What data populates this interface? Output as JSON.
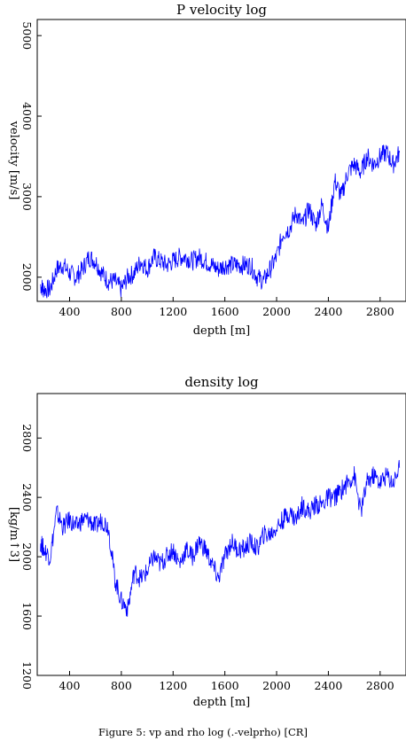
{
  "figure": {
    "caption": "Figure 5: vp and rho log  (.-velprho) [CR]"
  },
  "chart_data": [
    {
      "type": "line",
      "title": "P velocity log",
      "xlabel": "depth [m]",
      "ylabel": "velocity [m/s]",
      "xlim": [
        150,
        3000
      ],
      "ylim": [
        1700,
        5200
      ],
      "xticks": [
        400,
        800,
        1200,
        1600,
        2000,
        2400,
        2800
      ],
      "xtick_labels": [
        "400",
        "800",
        "1200",
        "1600",
        "2000",
        "2400",
        "2800"
      ],
      "yticks": [
        2000,
        3000,
        4000,
        5000
      ],
      "ytick_labels": [
        "2000",
        "3000",
        "4000",
        "5000"
      ],
      "grid": false,
      "line_color": "#0000ff",
      "series": [
        {
          "x": [
            175,
            200,
            250,
            300,
            350,
            400,
            450,
            500,
            550,
            600,
            650,
            700,
            750,
            800,
            850,
            900,
            950,
            1000,
            1050,
            1100,
            1150,
            1200,
            1250,
            1300,
            1350,
            1400,
            1450,
            1500,
            1550,
            1600,
            1650,
            1700,
            1750,
            1800,
            1850,
            1900,
            1950,
            2000,
            2050,
            2100,
            2150,
            2200,
            2250,
            2300,
            2350,
            2400,
            2450,
            2500,
            2550,
            2600,
            2650,
            2700,
            2750,
            2800,
            2850,
            2900,
            2950
          ],
          "y": [
            1900,
            1850,
            1850,
            2100,
            2150,
            2050,
            2000,
            2100,
            2250,
            2200,
            2050,
            1950,
            1950,
            1850,
            2000,
            2050,
            2200,
            2100,
            2250,
            2200,
            2150,
            2200,
            2250,
            2250,
            2200,
            2250,
            2200,
            2150,
            2100,
            2150,
            2150,
            2150,
            2150,
            2150,
            2000,
            1950,
            2100,
            2250,
            2550,
            2600,
            2800,
            2650,
            2850,
            2650,
            2900,
            2600,
            3200,
            3000,
            3300,
            3400,
            3300,
            3500,
            3400,
            3500,
            3550,
            3400,
            3550
          ]
        }
      ]
    },
    {
      "type": "line",
      "title": "density log",
      "xlabel": "depth [m]",
      "ylabel": "[kg/m↑3]",
      "xlim": [
        150,
        3000
      ],
      "ylim": [
        1200,
        3100
      ],
      "xticks": [
        400,
        800,
        1200,
        1600,
        2000,
        2400,
        2800
      ],
      "xtick_labels": [
        "400",
        "800",
        "1200",
        "1600",
        "2000",
        "2400",
        "2800"
      ],
      "yticks": [
        1200,
        1600,
        2000,
        2400,
        2800
      ],
      "ytick_labels": [
        "1200",
        "1600",
        "2000",
        "2400",
        "2800"
      ],
      "grid": false,
      "line_color": "#0000ff",
      "series": [
        {
          "x": [
            175,
            200,
            250,
            300,
            350,
            400,
            450,
            500,
            550,
            600,
            650,
            700,
            750,
            800,
            850,
            900,
            950,
            1000,
            1050,
            1100,
            1150,
            1200,
            1250,
            1300,
            1350,
            1400,
            1450,
            1500,
            1550,
            1600,
            1650,
            1700,
            1750,
            1800,
            1850,
            1900,
            1950,
            2000,
            2050,
            2100,
            2150,
            2200,
            2250,
            2300,
            2350,
            2400,
            2450,
            2500,
            2550,
            2600,
            2650,
            2700,
            2750,
            2800,
            2850,
            2900,
            2950
          ],
          "y": [
            2100,
            2050,
            2000,
            2300,
            2200,
            2250,
            2200,
            2250,
            2250,
            2200,
            2250,
            2200,
            1850,
            1700,
            1650,
            1900,
            1850,
            1900,
            2000,
            1950,
            2000,
            2050,
            1950,
            2050,
            2000,
            2100,
            2050,
            1950,
            1850,
            2000,
            2100,
            2050,
            2050,
            2100,
            2050,
            2150,
            2150,
            2200,
            2250,
            2300,
            2250,
            2350,
            2300,
            2350,
            2350,
            2400,
            2400,
            2450,
            2500,
            2550,
            2300,
            2500,
            2550,
            2500,
            2550,
            2500,
            2600
          ]
        }
      ]
    }
  ]
}
